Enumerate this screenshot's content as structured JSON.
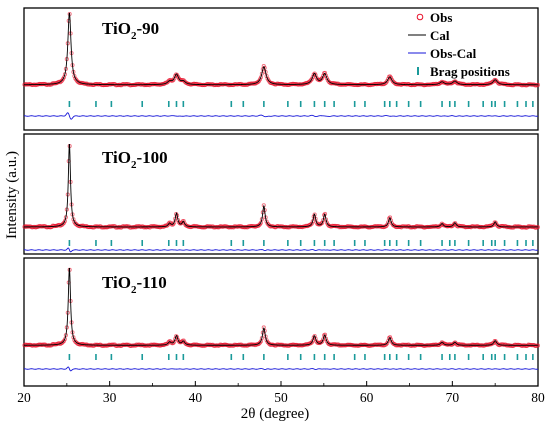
{
  "chart_data": {
    "type": "line",
    "xlabel": "2θ (degree)",
    "ylabel": "Intensity (a.u.)",
    "xlim": [
      20,
      80
    ],
    "xticks": [
      20,
      30,
      40,
      50,
      60,
      70,
      80
    ],
    "legend": {
      "placement": "top-right",
      "entries": [
        "Obs",
        "Cal",
        "Obs-Cal",
        "Brag positions"
      ]
    },
    "series_colors": {
      "obs": "#e8102a",
      "cal": "#000000",
      "diff": "#1515d8",
      "bragg": "#1a9a9a"
    },
    "panels": [
      {
        "title_main": "TiO",
        "title_sub": "2",
        "title_suffix": "-90",
        "baseline": 10,
        "diff_wiggle": 1.0,
        "peaks": [
          {
            "x": 25.3,
            "h": 100,
            "w": 0.22
          },
          {
            "x": 37.0,
            "h": 4,
            "w": 0.3
          },
          {
            "x": 37.8,
            "h": 14,
            "w": 0.3
          },
          {
            "x": 38.6,
            "h": 4,
            "w": 0.3
          },
          {
            "x": 48.0,
            "h": 25,
            "w": 0.3
          },
          {
            "x": 53.9,
            "h": 15,
            "w": 0.3
          },
          {
            "x": 55.1,
            "h": 15,
            "w": 0.3
          },
          {
            "x": 62.7,
            "h": 11,
            "w": 0.3
          },
          {
            "x": 68.8,
            "h": 4,
            "w": 0.3
          },
          {
            "x": 70.3,
            "h": 5,
            "w": 0.3
          },
          {
            "x": 75.0,
            "h": 7,
            "w": 0.3
          }
        ]
      },
      {
        "title_main": "TiO",
        "title_sub": "2",
        "title_suffix": "-100",
        "baseline": 6,
        "diff_wiggle": 0.6,
        "peaks": [
          {
            "x": 25.3,
            "h": 100,
            "w": 0.15
          },
          {
            "x": 37.0,
            "h": 4,
            "w": 0.18
          },
          {
            "x": 37.8,
            "h": 16,
            "w": 0.18
          },
          {
            "x": 38.6,
            "h": 6,
            "w": 0.18
          },
          {
            "x": 48.0,
            "h": 25,
            "w": 0.18
          },
          {
            "x": 53.9,
            "h": 15,
            "w": 0.18
          },
          {
            "x": 55.1,
            "h": 15,
            "w": 0.18
          },
          {
            "x": 62.7,
            "h": 11,
            "w": 0.18
          },
          {
            "x": 68.8,
            "h": 4,
            "w": 0.18
          },
          {
            "x": 70.3,
            "h": 5,
            "w": 0.18
          },
          {
            "x": 75.0,
            "h": 6,
            "w": 0.18
          }
        ]
      },
      {
        "title_main": "TiO",
        "title_sub": "2",
        "title_suffix": "-110",
        "baseline": 6,
        "diff_wiggle": 0.6,
        "peaks": [
          {
            "x": 25.3,
            "h": 100,
            "w": 0.16
          },
          {
            "x": 37.0,
            "h": 4,
            "w": 0.2
          },
          {
            "x": 37.8,
            "h": 12,
            "w": 0.2
          },
          {
            "x": 38.6,
            "h": 5,
            "w": 0.2
          },
          {
            "x": 48.0,
            "h": 22,
            "w": 0.2
          },
          {
            "x": 53.9,
            "h": 12,
            "w": 0.2
          },
          {
            "x": 55.1,
            "h": 13,
            "w": 0.2
          },
          {
            "x": 62.7,
            "h": 10,
            "w": 0.2
          },
          {
            "x": 68.8,
            "h": 4,
            "w": 0.2
          },
          {
            "x": 70.3,
            "h": 4,
            "w": 0.2
          },
          {
            "x": 75.0,
            "h": 6,
            "w": 0.2
          }
        ]
      }
    ],
    "bragg_positions": [
      25.3,
      28.4,
      30.2,
      33.8,
      36.9,
      37.8,
      38.6,
      44.2,
      45.6,
      48.0,
      50.8,
      52.3,
      53.9,
      55.1,
      56.2,
      58.6,
      59.8,
      62.1,
      62.7,
      63.5,
      64.9,
      66.3,
      68.8,
      69.7,
      70.3,
      71.9,
      73.6,
      74.6,
      75.0,
      76.1,
      77.6,
      78.6,
      79.4
    ]
  }
}
